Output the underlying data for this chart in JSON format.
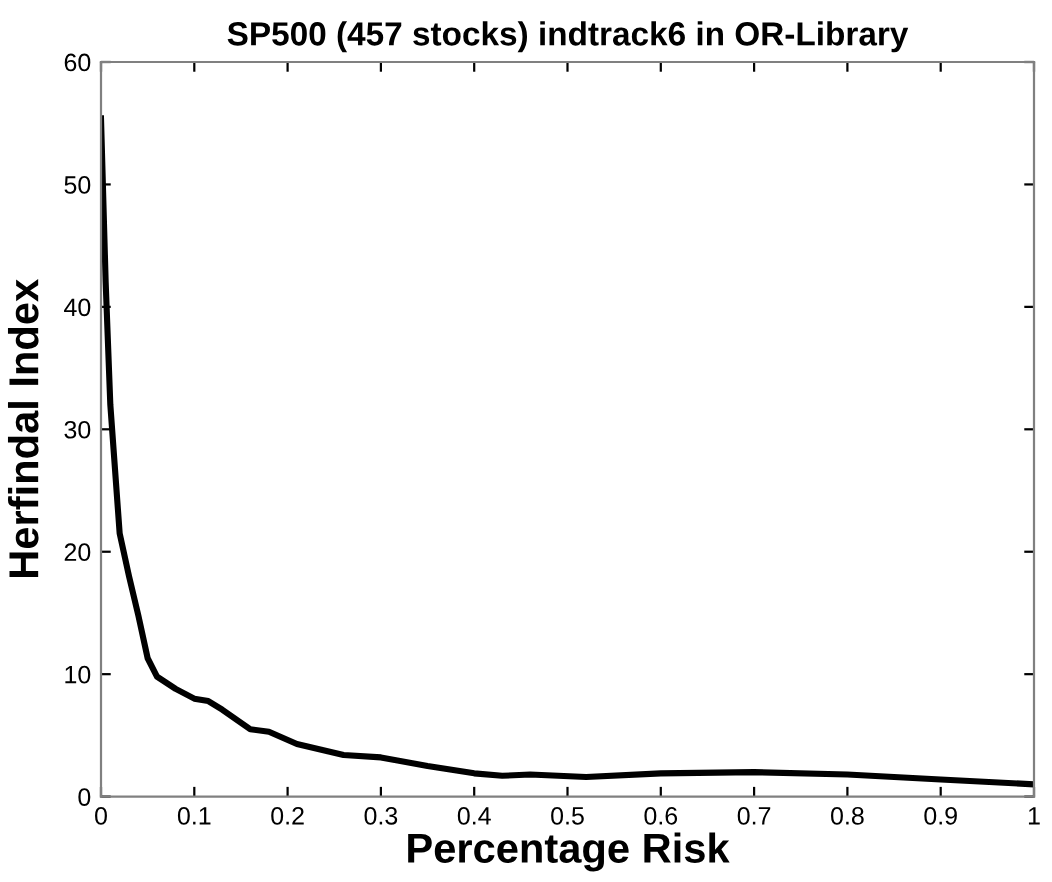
{
  "chart_data": {
    "type": "line",
    "title": "SP500 (457 stocks) indtrack6 in OR-Library",
    "xlabel": "Percentage Risk",
    "ylabel": "Herfindal Index",
    "x": [
      0,
      0.005,
      0.01,
      0.02,
      0.03,
      0.04,
      0.05,
      0.06,
      0.08,
      0.1,
      0.115,
      0.13,
      0.16,
      0.18,
      0.21,
      0.26,
      0.3,
      0.35,
      0.4,
      0.43,
      0.46,
      0.52,
      0.6,
      0.7,
      0.8,
      0.9,
      1.0
    ],
    "series": [
      {
        "color": "#000000",
        "values": [
          55.4,
          42,
          32,
          21.5,
          18,
          14.8,
          11.3,
          9.8,
          8.8,
          8.0,
          7.8,
          7.1,
          5.5,
          5.3,
          4.3,
          3.4,
          3.2,
          2.5,
          1.9,
          1.7,
          1.8,
          1.6,
          1.9,
          2.0,
          1.8,
          1.4,
          1.0
        ]
      }
    ],
    "xlim": [
      0,
      1
    ],
    "xticks": [
      0,
      0.1,
      0.2,
      0.3,
      0.4,
      0.5,
      0.6,
      0.7,
      0.8,
      0.9,
      1
    ],
    "ylim": [
      0,
      60
    ],
    "yticks": [
      0,
      10,
      20,
      30,
      40,
      50,
      60
    ],
    "grid": false,
    "legend": false,
    "line_style": "solid",
    "marker": "none"
  }
}
